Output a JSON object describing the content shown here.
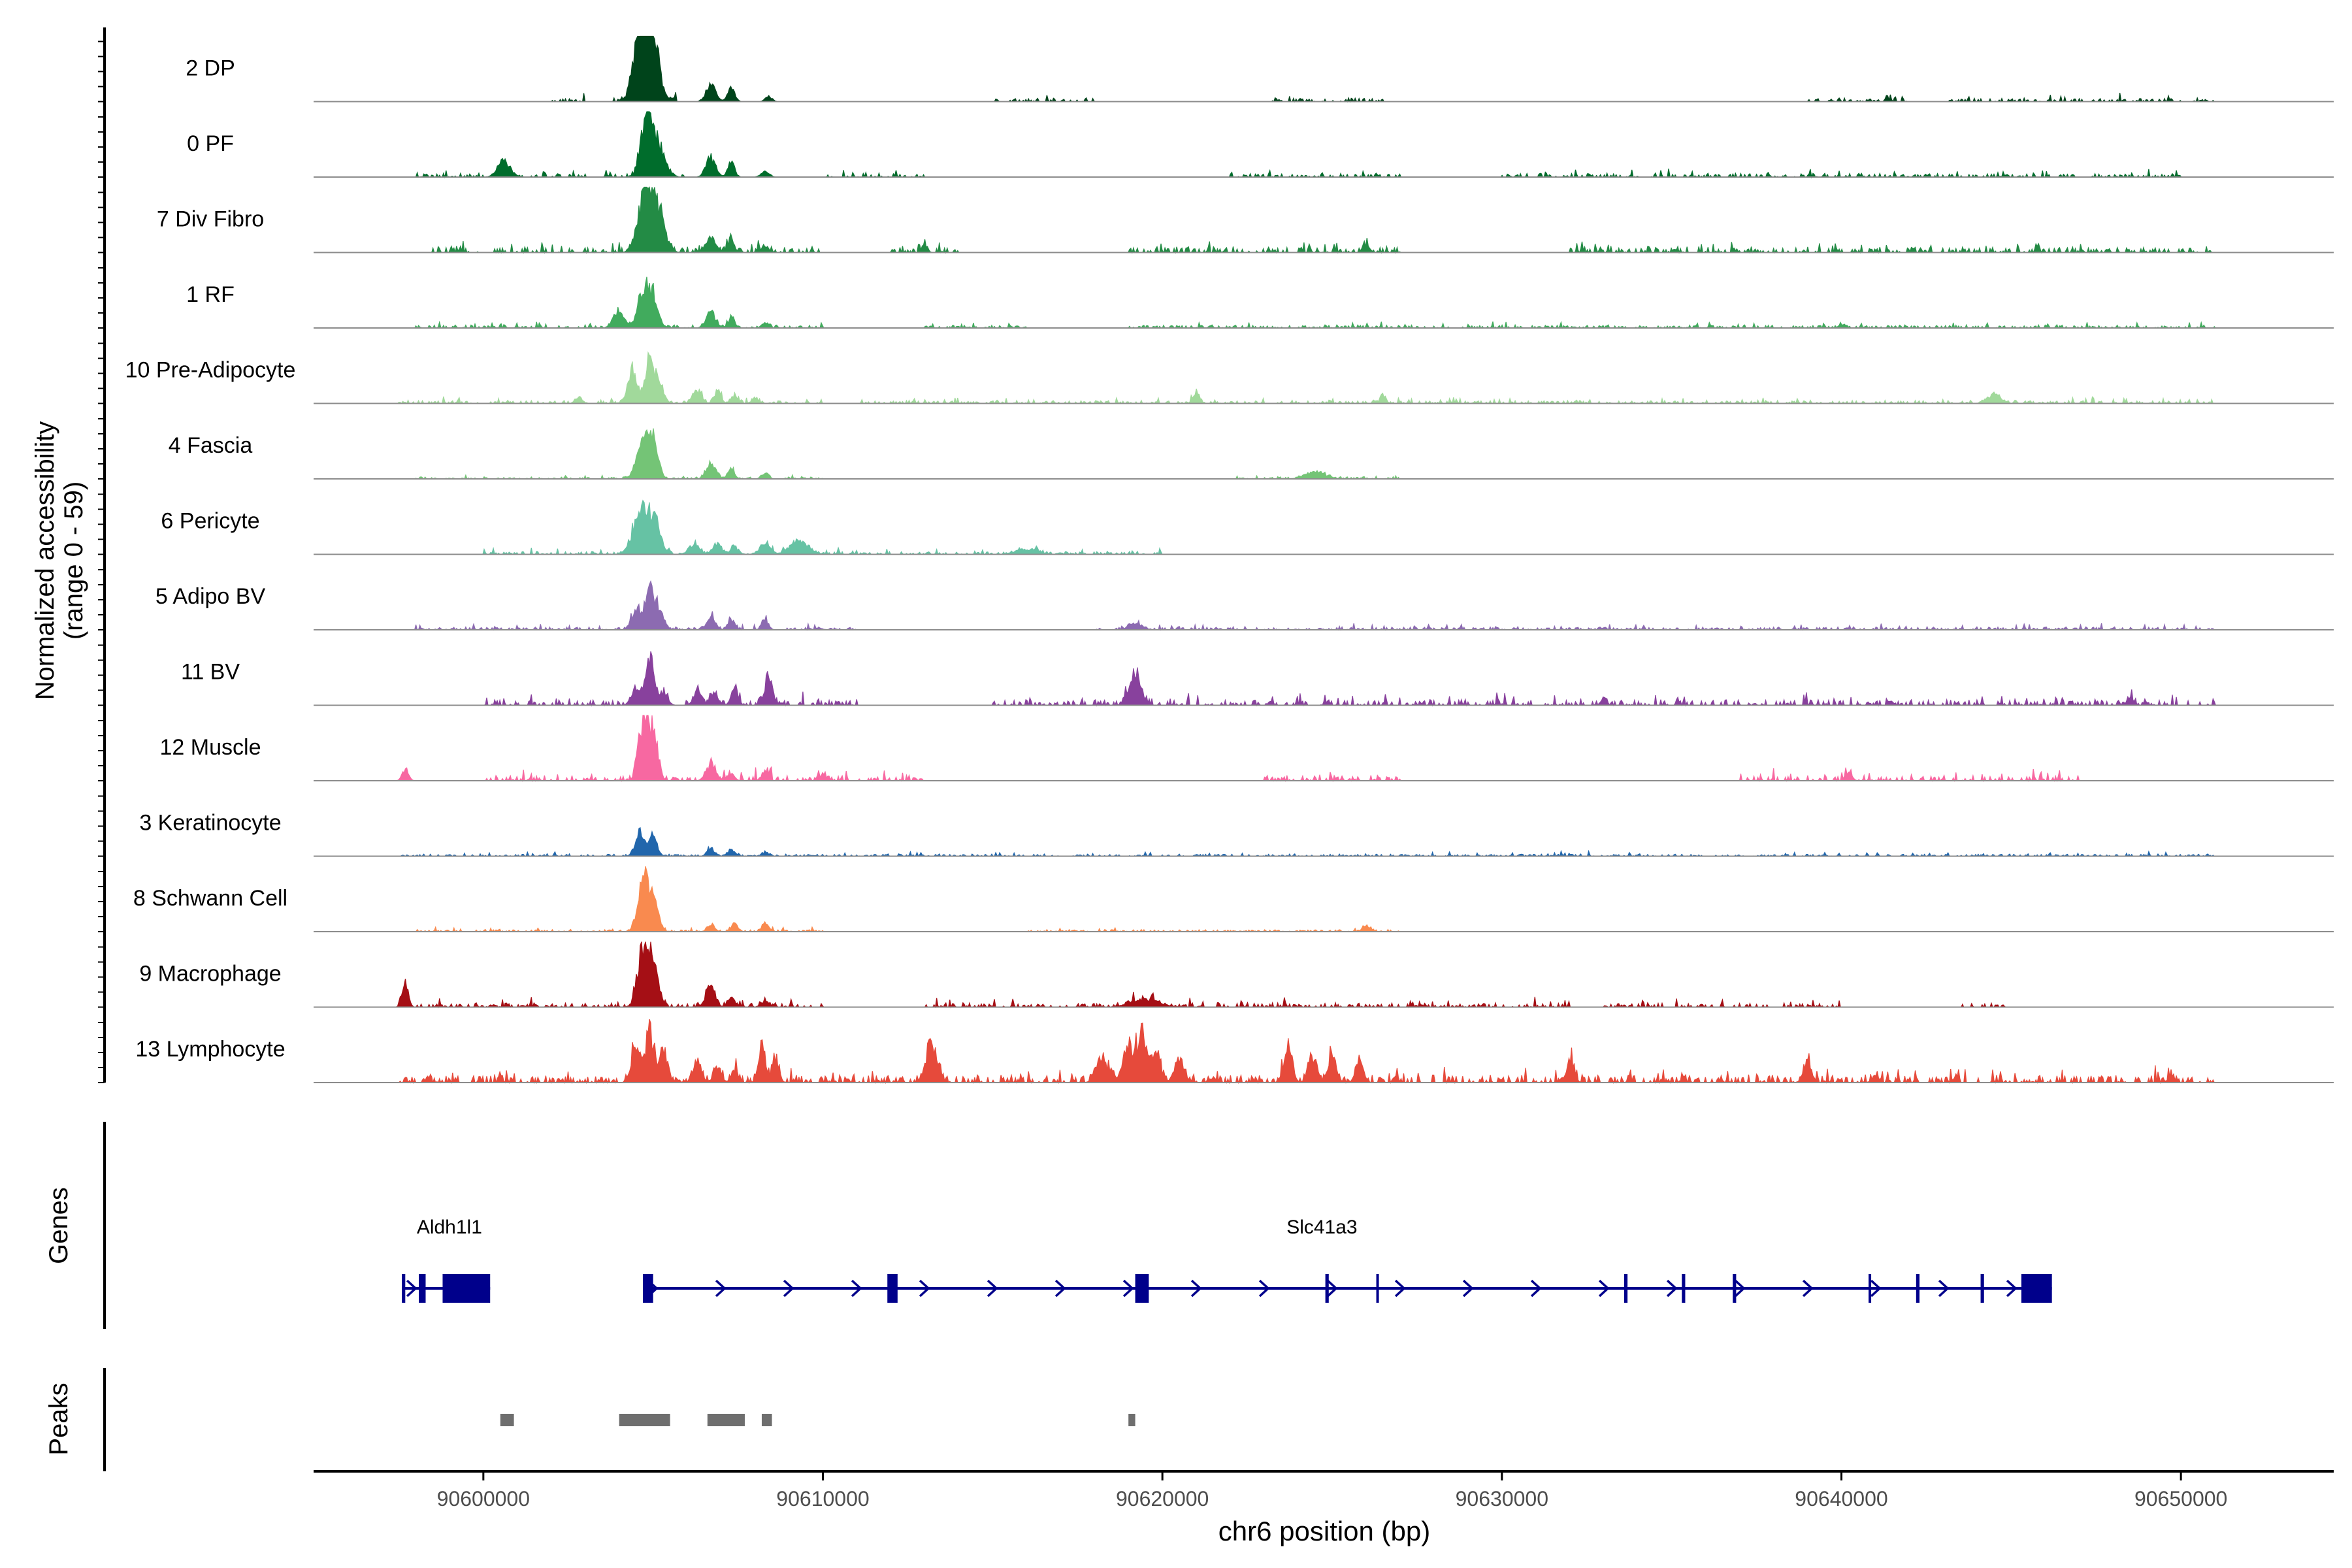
{
  "chart_data": {
    "type": "area",
    "subtype": "genome-coverage-tracks",
    "x_unit": "bp",
    "xlabel": "chr6 position (bp)",
    "xlim": [
      90595000,
      90654500
    ],
    "xticks": [
      90600000,
      90610000,
      90620000,
      90630000,
      90640000,
      90650000
    ],
    "xtick_labels": [
      "90600000",
      "90610000",
      "90620000",
      "90630000",
      "90640000",
      "90650000"
    ],
    "coverage_ylabel": [
      "Normalized accessibility",
      "(range 0 - 59)"
    ],
    "coverage_ylim": [
      0,
      59
    ],
    "grid": false,
    "tracks": [
      {
        "name": "2 DP",
        "color": "#00441b",
        "peaks": [
          [
            90604600,
            0.75,
            160
          ],
          [
            90605000,
            0.7,
            150
          ],
          [
            90604800,
            0.5,
            300
          ],
          [
            90606700,
            0.25,
            140
          ],
          [
            90607300,
            0.22,
            100
          ],
          [
            90608400,
            0.08,
            100
          ]
        ],
        "noise": [
          [
            90602000,
            90603000
          ],
          [
            90603700,
            90605800
          ],
          [
            90615000,
            90618000
          ],
          [
            90623000,
            90626500
          ],
          [
            90639000,
            90642000
          ],
          [
            90643000,
            90651000
          ]
        ],
        "noise_level": 0.05
      },
      {
        "name": "0 PF",
        "color": "#006d2c",
        "peaks": [
          [
            90600600,
            0.25,
            180
          ],
          [
            90604800,
            0.85,
            160
          ],
          [
            90605100,
            0.5,
            220
          ],
          [
            90606700,
            0.3,
            140
          ],
          [
            90607300,
            0.22,
            100
          ],
          [
            90608300,
            0.08,
            120
          ]
        ],
        "noise": [
          [
            90598000,
            90600000
          ],
          [
            90601000,
            90603000
          ],
          [
            90603400,
            90605900
          ],
          [
            90610000,
            90613000
          ],
          [
            90622000,
            90627000
          ],
          [
            90630000,
            90650000
          ]
        ],
        "noise_level": 0.05
      },
      {
        "name": "7 Div Fibro",
        "color": "#238b45",
        "peaks": [
          [
            90604800,
            0.9,
            220
          ],
          [
            90605100,
            0.55,
            220
          ],
          [
            90606700,
            0.22,
            140
          ],
          [
            90607300,
            0.18,
            100
          ],
          [
            90608300,
            0.1,
            100
          ],
          [
            90613000,
            0.12,
            80
          ],
          [
            90626000,
            0.12,
            100
          ]
        ],
        "noise": [
          [
            90598500,
            90610000
          ],
          [
            90612000,
            90614000
          ],
          [
            90619000,
            90627000
          ],
          [
            90632000,
            90651000
          ]
        ],
        "noise_level": 0.08
      },
      {
        "name": "1 RF",
        "color": "#41ab5d",
        "peaks": [
          [
            90604000,
            0.25,
            160
          ],
          [
            90604700,
            0.55,
            150
          ],
          [
            90605000,
            0.45,
            150
          ],
          [
            90606700,
            0.22,
            140
          ],
          [
            90607300,
            0.15,
            100
          ],
          [
            90608300,
            0.08,
            100
          ],
          [
            90640000,
            0.06,
            80
          ]
        ],
        "noise": [
          [
            90598000,
            90610000
          ],
          [
            90613000,
            90616000
          ],
          [
            90619000,
            90651000
          ]
        ],
        "noise_level": 0.04
      },
      {
        "name": "10 Pre-Adipocyte",
        "color": "#a1d99b",
        "peaks": [
          [
            90602800,
            0.1,
            80
          ],
          [
            90604400,
            0.5,
            140
          ],
          [
            90604900,
            0.7,
            130
          ],
          [
            90605200,
            0.3,
            120
          ],
          [
            90606300,
            0.2,
            120
          ],
          [
            90606900,
            0.2,
            100
          ],
          [
            90607400,
            0.12,
            100
          ],
          [
            90608000,
            0.1,
            80
          ],
          [
            90621000,
            0.14,
            100
          ],
          [
            90626500,
            0.12,
            80
          ],
          [
            90644500,
            0.12,
            200
          ]
        ],
        "noise": [
          [
            90597500,
            90610000
          ],
          [
            90611000,
            90651000
          ]
        ],
        "noise_level": 0.04
      },
      {
        "name": "4 Fascia",
        "color": "#74c476",
        "peaks": [
          [
            90604700,
            0.6,
            180
          ],
          [
            90605000,
            0.5,
            150
          ],
          [
            90606700,
            0.22,
            140
          ],
          [
            90607300,
            0.15,
            100
          ],
          [
            90608300,
            0.08,
            100
          ],
          [
            90624500,
            0.1,
            300
          ]
        ],
        "noise": [
          [
            90598000,
            90610000
          ],
          [
            90622000,
            90627000
          ]
        ],
        "noise_level": 0.03
      },
      {
        "name": "6 Pericyte",
        "color": "#66c2a4",
        "peaks": [
          [
            90604600,
            0.55,
            220
          ],
          [
            90605000,
            0.5,
            200
          ],
          [
            90606200,
            0.15,
            150
          ],
          [
            90606900,
            0.15,
            120
          ],
          [
            90607400,
            0.1,
            120
          ],
          [
            90608300,
            0.15,
            160
          ],
          [
            90609300,
            0.2,
            260
          ],
          [
            90616000,
            0.08,
            300
          ]
        ],
        "noise": [
          [
            90600000,
            90620000
          ]
        ],
        "noise_level": 0.04
      },
      {
        "name": "5 Adipo BV",
        "color": "#8c6bb1",
        "peaks": [
          [
            90604500,
            0.3,
            140
          ],
          [
            90604900,
            0.65,
            130
          ],
          [
            90605200,
            0.3,
            120
          ],
          [
            90606700,
            0.2,
            120
          ],
          [
            90607300,
            0.16,
            100
          ],
          [
            90608300,
            0.14,
            100
          ],
          [
            90619200,
            0.08,
            200
          ]
        ],
        "noise": [
          [
            90598000,
            90611000
          ],
          [
            90618000,
            90651000
          ]
        ],
        "noise_level": 0.04
      },
      {
        "name": "11 BV",
        "color": "#88419d",
        "peaks": [
          [
            90604500,
            0.3,
            130
          ],
          [
            90604900,
            0.7,
            120
          ],
          [
            90605300,
            0.2,
            120
          ],
          [
            90606300,
            0.2,
            110
          ],
          [
            90606800,
            0.2,
            110
          ],
          [
            90607400,
            0.25,
            100
          ],
          [
            90608400,
            0.45,
            110
          ],
          [
            90619200,
            0.45,
            180
          ],
          [
            90633000,
            0.12,
            80
          ],
          [
            90648500,
            0.14,
            80
          ]
        ],
        "noise": [
          [
            90600000,
            90611000
          ],
          [
            90615000,
            90651000
          ]
        ],
        "noise_level": 0.08
      },
      {
        "name": "12 Muscle",
        "color": "#f768a1",
        "peaks": [
          [
            90597700,
            0.18,
            90
          ],
          [
            90604700,
            0.85,
            140
          ],
          [
            90605000,
            0.7,
            140
          ],
          [
            90606700,
            0.25,
            140
          ],
          [
            90607300,
            0.12,
            100
          ],
          [
            90608300,
            0.15,
            100
          ],
          [
            90610000,
            0.1,
            80
          ],
          [
            90640200,
            0.12,
            100
          ]
        ],
        "noise": [
          [
            90600000,
            90613000
          ],
          [
            90623000,
            90627000
          ],
          [
            90637000,
            90647000
          ]
        ],
        "noise_level": 0.08
      },
      {
        "name": "3 Keratinocyte",
        "color": "#2166ac",
        "peaks": [
          [
            90604600,
            0.35,
            130
          ],
          [
            90605000,
            0.3,
            120
          ],
          [
            90606700,
            0.12,
            100
          ],
          [
            90607300,
            0.1,
            100
          ],
          [
            90608300,
            0.06,
            100
          ]
        ],
        "noise": [
          [
            90597500,
            90651000
          ]
        ],
        "noise_level": 0.03
      },
      {
        "name": "8 Schwann Cell",
        "color": "#f98a4f",
        "peaks": [
          [
            90604700,
            0.8,
            150
          ],
          [
            90605000,
            0.45,
            150
          ],
          [
            90606700,
            0.12,
            100
          ],
          [
            90607400,
            0.12,
            100
          ],
          [
            90608300,
            0.12,
            100
          ],
          [
            90626000,
            0.08,
            120
          ]
        ],
        "noise": [
          [
            90598000,
            90610000
          ],
          [
            90616000,
            90627000
          ]
        ],
        "noise_level": 0.03
      },
      {
        "name": "9 Macrophage",
        "color": "#a50f15",
        "peaks": [
          [
            90597700,
            0.35,
            90
          ],
          [
            90604700,
            0.8,
            160
          ],
          [
            90605000,
            0.7,
            150
          ],
          [
            90606700,
            0.35,
            120
          ],
          [
            90607300,
            0.15,
            100
          ],
          [
            90608300,
            0.08,
            120
          ],
          [
            90619500,
            0.12,
            400
          ]
        ],
        "noise": [
          [
            90597500,
            90610000
          ],
          [
            90613000,
            90632000
          ],
          [
            90633000,
            90640000
          ],
          [
            90643500,
            90645000
          ]
        ],
        "noise_level": 0.06
      },
      {
        "name": "13 Lymphocyte",
        "color": "#e64a3b",
        "peaks": [
          [
            90604500,
            0.6,
            130
          ],
          [
            90604900,
            0.75,
            120
          ],
          [
            90605300,
            0.5,
            120
          ],
          [
            90606300,
            0.35,
            110
          ],
          [
            90606900,
            0.25,
            110
          ],
          [
            90607400,
            0.2,
            100
          ],
          [
            90608200,
            0.55,
            100
          ],
          [
            90608600,
            0.35,
            100
          ],
          [
            90613200,
            0.6,
            160
          ],
          [
            90618200,
            0.35,
            160
          ],
          [
            90619000,
            0.6,
            150
          ],
          [
            90619400,
            0.8,
            120
          ],
          [
            90619800,
            0.4,
            140
          ],
          [
            90620500,
            0.35,
            140
          ],
          [
            90623700,
            0.55,
            120
          ],
          [
            90624400,
            0.35,
            120
          ],
          [
            90625000,
            0.4,
            120
          ],
          [
            90625800,
            0.35,
            110
          ],
          [
            90632000,
            0.3,
            120
          ],
          [
            90639000,
            0.25,
            120
          ],
          [
            90641000,
            0.1,
            100
          ],
          [
            90649700,
            0.12,
            80
          ]
        ],
        "noise": [
          [
            90597500,
            90651000
          ]
        ],
        "noise_level": 0.1
      }
    ],
    "genes_track": {
      "ylabel": "Genes",
      "color": "#00008b",
      "genes": [
        {
          "name": "Aldh1l1",
          "label_x": 90599000,
          "start": 90597600,
          "end": 90600200,
          "strand": "+",
          "exons": [
            [
              90597600,
              90597700
            ],
            [
              90598100,
              90598300
            ],
            [
              90598800,
              90600200
            ]
          ]
        },
        {
          "name": "Slc41a3",
          "label_x": 90624700,
          "start": 90604700,
          "end": 90646200,
          "strand": "+",
          "exons": [
            [
              90604700,
              90605000
            ],
            [
              90611900,
              90612200
            ],
            [
              90619200,
              90619600
            ],
            [
              90624800,
              90624900
            ],
            [
              90626300,
              90626350
            ],
            [
              90633600,
              90633700
            ],
            [
              90635300,
              90635400
            ],
            [
              90636800,
              90636900
            ],
            [
              90640800,
              90640850
            ],
            [
              90642200,
              90642300
            ],
            [
              90644100,
              90644200
            ],
            [
              90645300,
              90646200
            ]
          ]
        }
      ]
    },
    "peaks_track": {
      "ylabel": "Peaks",
      "color": "#6e6e6e",
      "regions": [
        [
          90600500,
          90600900
        ],
        [
          90604000,
          90605500
        ],
        [
          90606600,
          90607700
        ],
        [
          90608200,
          90608500
        ],
        [
          90619000,
          90619200
        ]
      ]
    }
  }
}
